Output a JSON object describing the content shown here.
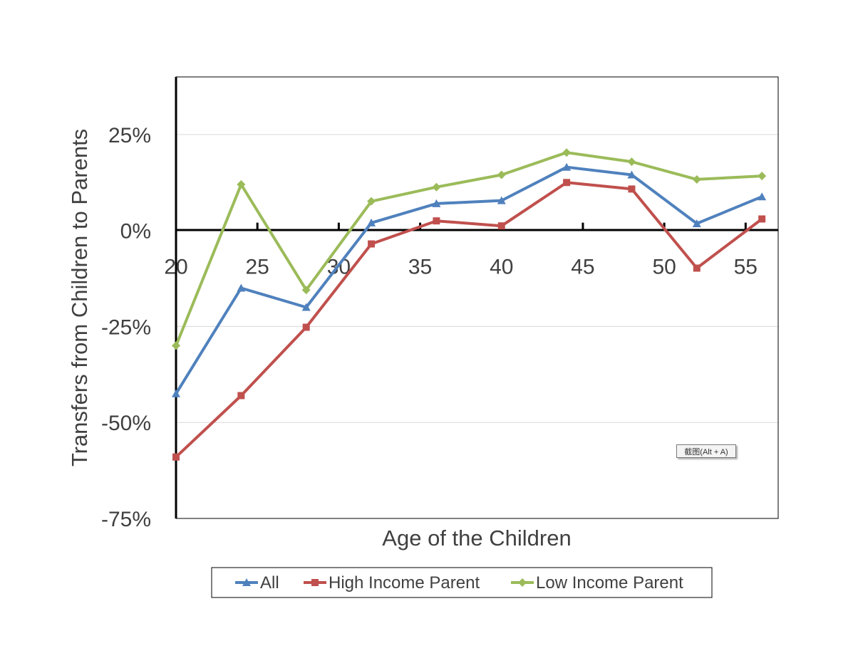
{
  "chart_data": {
    "type": "line",
    "title": "",
    "xlabel": "Age of the Children",
    "ylabel": "Transfers from Children to Parents",
    "x_ticks": [
      "20",
      "25",
      "30",
      "35",
      "40",
      "45",
      "50",
      "55"
    ],
    "y_ticks": [
      "25%",
      "0%",
      "-25%",
      "-50%",
      "-75%"
    ],
    "xlim": [
      20,
      57
    ],
    "ylim": [
      -0.75,
      0.4
    ],
    "grid": "horizontal",
    "legend_position": "bottom",
    "series": [
      {
        "name": "All",
        "color": "#4f81bd",
        "marker": "triangle",
        "x": [
          20,
          24,
          28,
          32,
          36,
          40,
          44,
          48,
          52,
          56
        ],
        "y": [
          -0.425,
          -0.15,
          -0.2,
          0.02,
          0.07,
          0.078,
          0.165,
          0.145,
          0.018,
          0.088
        ]
      },
      {
        "name": "High Income Parent",
        "color": "#c0504d",
        "marker": "square",
        "x": [
          20,
          24,
          28,
          32,
          36,
          40,
          44,
          48,
          52,
          56
        ],
        "y": [
          -0.59,
          -0.43,
          -0.252,
          -0.035,
          0.025,
          0.012,
          0.125,
          0.108,
          -0.098,
          0.03
        ]
      },
      {
        "name": "Low Income Parent",
        "color": "#9bbb59",
        "marker": "diamond",
        "x": [
          20,
          24,
          28,
          32,
          36,
          40,
          44,
          48,
          52,
          56
        ],
        "y": [
          -0.3,
          0.12,
          -0.155,
          0.076,
          0.113,
          0.145,
          0.203,
          0.179,
          0.133,
          0.142
        ]
      }
    ]
  },
  "tooltip": {
    "label": "截图(Alt + A)"
  }
}
